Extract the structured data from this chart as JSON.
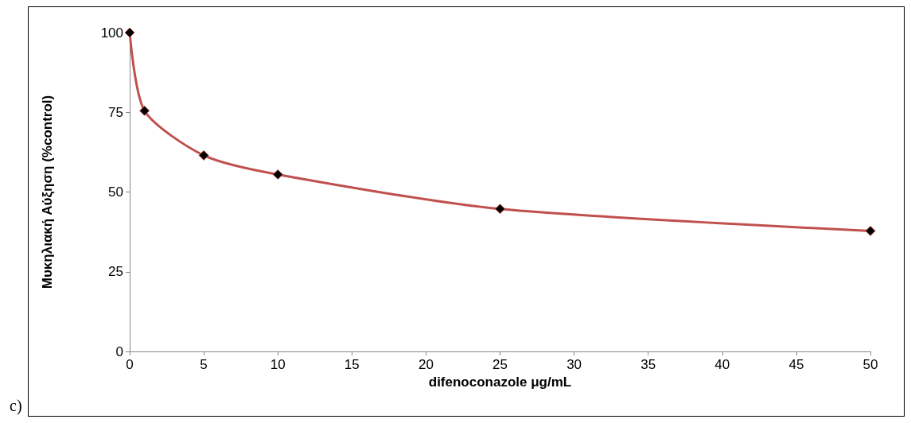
{
  "chart_data": {
    "type": "line",
    "xlabel": "difenoconazole μg/mL",
    "ylabel": "Μυκηλιακή Αύξηση (%control)",
    "annotations": [
      "c)"
    ],
    "x": [
      0,
      1,
      5,
      10,
      25,
      50
    ],
    "series": [
      {
        "color": "#c0504d",
        "values": [
          100,
          75.5,
          61.5,
          55.5,
          44.7,
          37.8
        ]
      }
    ],
    "xlim": [
      0,
      50
    ],
    "xticks": [
      0,
      5,
      10,
      15,
      20,
      25,
      30,
      35,
      40,
      45,
      50
    ],
    "ylim": [
      0,
      100
    ],
    "yticks": [
      0,
      25,
      50,
      75,
      100
    ],
    "grid": false,
    "marker": "diamond",
    "line_style": "solid"
  }
}
